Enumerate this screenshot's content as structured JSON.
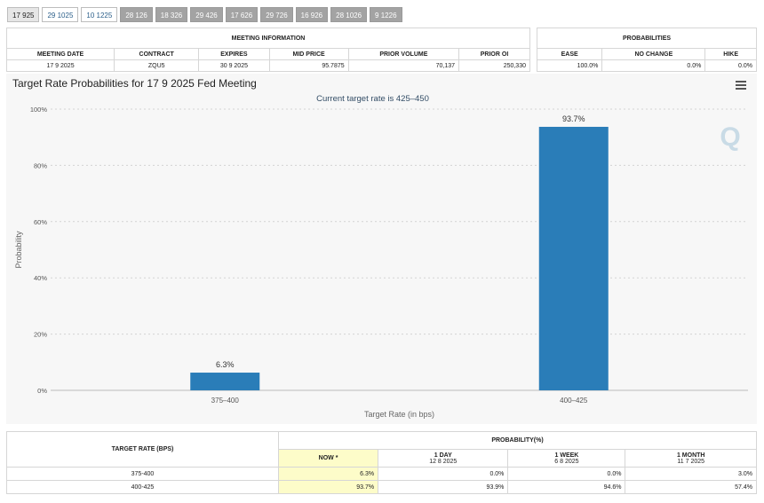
{
  "tabs": [
    "17 925",
    "29 1025",
    "10 1225",
    "28 126",
    "18 326",
    "29 426",
    "17 626",
    "29 726",
    "16 926",
    "28 1026",
    "9 1226"
  ],
  "meeting_info": {
    "group_title": "MEETING INFORMATION",
    "headers": [
      "MEETING DATE",
      "CONTRACT",
      "EXPIRES",
      "MID PRICE",
      "PRIOR VOLUME",
      "PRIOR OI"
    ],
    "row": [
      "17 9 2025",
      "ZQU5",
      "30 9 2025",
      "95.7875",
      "70,137",
      "250,330"
    ]
  },
  "probabilities_info": {
    "group_title": "PROBABILITIES",
    "headers": [
      "EASE",
      "NO CHANGE",
      "HIKE"
    ],
    "row": [
      "100.0%",
      "0.0%",
      "0.0%"
    ]
  },
  "chart_panel": {
    "title": "Target Rate Probabilities for 17 9 2025 Fed Meeting",
    "watermark": "Q"
  },
  "chart_data": {
    "type": "bar",
    "title": "Target Rate Probabilities for 17 9 2025 Fed Meeting",
    "subtitle": "Current target rate is 425–450",
    "categories": [
      "375–400",
      "400–425"
    ],
    "values": [
      6.3,
      93.7
    ],
    "data_labels": [
      "6.3%",
      "93.7%"
    ],
    "xlabel": "Target Rate (in bps)",
    "ylabel": "Probability",
    "ylim": [
      0,
      100
    ],
    "yticks": [
      "0%",
      "20%",
      "40%",
      "60%",
      "80%",
      "100%"
    ],
    "grid": true,
    "bar_color": "#2a7db8"
  },
  "prob_table": {
    "col_header": "TARGET RATE (BPS)",
    "group_header": "PROBABILITY(%)",
    "periods": [
      {
        "label": "NOW *",
        "date": ""
      },
      {
        "label": "1 DAY",
        "date": "12 8 2025"
      },
      {
        "label": "1 WEEK",
        "date": "6 8 2025"
      },
      {
        "label": "1 MONTH",
        "date": "11 7 2025"
      }
    ],
    "rows": [
      {
        "rate": "375-400",
        "values": [
          "6.3%",
          "0.0%",
          "0.0%",
          "3.0%"
        ]
      },
      {
        "rate": "400-425",
        "values": [
          "93.7%",
          "93.9%",
          "94.6%",
          "57.4%"
        ]
      }
    ]
  }
}
